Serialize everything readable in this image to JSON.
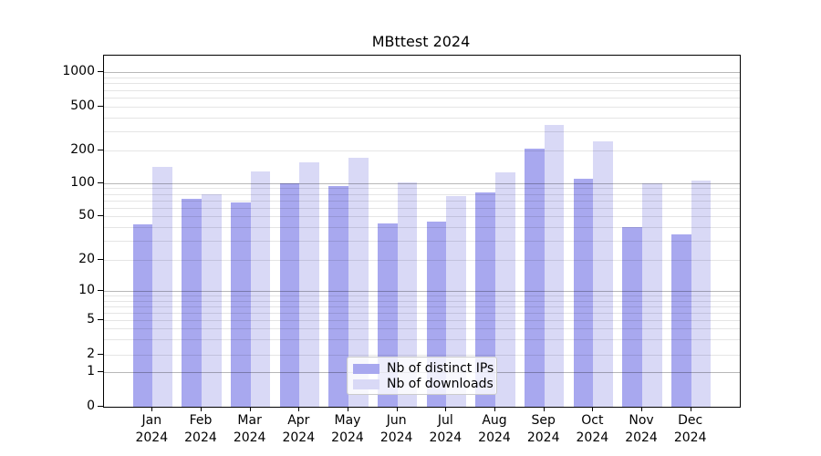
{
  "figure": {
    "title": "MBttest 2024"
  },
  "chart_data": {
    "type": "bar",
    "title": "MBttest 2024",
    "categories": [
      "Jan 2024",
      "Feb 2024",
      "Mar 2024",
      "Apr 2024",
      "May 2024",
      "Jun 2024",
      "Jul 2024",
      "Aug 2024",
      "Sep 2024",
      "Oct 2024",
      "Nov 2024",
      "Dec 2024"
    ],
    "series": [
      {
        "name": "Nb of distinct IPs",
        "color": "#a8a8ef",
        "values": [
          42,
          72,
          67,
          100,
          94,
          43,
          45,
          82,
          205,
          110,
          40,
          34
        ]
      },
      {
        "name": "Nb of downloads",
        "color": "#d9d9f6",
        "values": [
          140,
          80,
          127,
          155,
          170,
          102,
          77,
          126,
          340,
          240,
          100,
          105
        ]
      }
    ],
    "yscale": "symlog",
    "y_ticks": [
      0,
      1,
      2,
      5,
      10,
      20,
      50,
      100,
      200,
      500,
      1000
    ],
    "ylim": [
      0,
      1250
    ],
    "xlabel": "",
    "ylabel": "",
    "grid": true,
    "legend_position": "lower center"
  },
  "colors": {
    "axis": "#000000",
    "grid_major": "#b3b3b3",
    "grid_minor": "#e8e8e8",
    "background": "#ffffff"
  }
}
